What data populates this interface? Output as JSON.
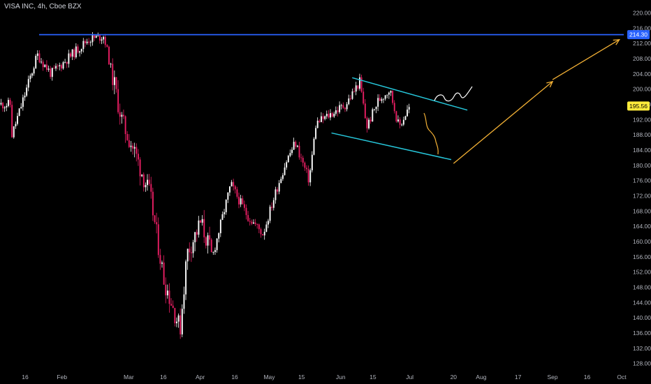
{
  "header": {
    "title": "VISA INC, 4h, Cboe BZX"
  },
  "colors": {
    "background": "#000000",
    "up_candle": "#ffffff",
    "down_candle": "#e91e63",
    "resistance_line": "#2962ff",
    "channel_lines": "#26c6da",
    "projection": "#f2b035",
    "last_price_tag": "#ffeb3b"
  },
  "chart_data": {
    "type": "candlestick",
    "y_axis": {
      "ticks": [
        "220.00",
        "216.00",
        "212.00",
        "208.00",
        "204.00",
        "200.00",
        "196.00",
        "192.00",
        "188.00",
        "184.00",
        "180.00",
        "176.00",
        "172.00",
        "168.00",
        "164.00",
        "160.00",
        "156.00",
        "152.00",
        "148.00",
        "144.00",
        "140.00",
        "136.00",
        "132.00",
        "128.00"
      ],
      "range": [
        126,
        222
      ]
    },
    "x_axis": {
      "ticks": [
        "16",
        "Feb",
        "Mar",
        "16",
        "Apr",
        "16",
        "May",
        "15",
        "Jun",
        "15",
        "Jul",
        "20",
        "Aug",
        "17",
        "Sep",
        "16",
        "Oct"
      ]
    },
    "price_levels": [
      {
        "name": "resistance",
        "value": 214.3,
        "label": "214.30"
      },
      {
        "name": "last_price",
        "value": 195.56,
        "label": "195.56"
      }
    ],
    "price_path_anchors": [
      {
        "date": "Jan 10",
        "price": 188
      },
      {
        "date": "Jan 21",
        "price": 209
      },
      {
        "date": "Jan 27",
        "price": 204
      },
      {
        "date": "Feb 12",
        "price": 213
      },
      {
        "date": "Feb 19",
        "price": 214
      },
      {
        "date": "Feb 21",
        "price": 208
      },
      {
        "date": "Feb 27",
        "price": 191
      },
      {
        "date": "Mar 3",
        "price": 184
      },
      {
        "date": "Mar 10",
        "price": 172
      },
      {
        "date": "Mar 16",
        "price": 150
      },
      {
        "date": "Mar 23",
        "price": 137
      },
      {
        "date": "Mar 26",
        "price": 157
      },
      {
        "date": "Apr 1",
        "price": 165
      },
      {
        "date": "Apr 6",
        "price": 156
      },
      {
        "date": "Apr 14",
        "price": 175
      },
      {
        "date": "Apr 21",
        "price": 167
      },
      {
        "date": "Apr 28",
        "price": 162
      },
      {
        "date": "May 4",
        "price": 174
      },
      {
        "date": "May 8",
        "price": 181
      },
      {
        "date": "May 12",
        "price": 186
      },
      {
        "date": "May 18",
        "price": 176
      },
      {
        "date": "May 21",
        "price": 191
      },
      {
        "date": "Jun 3",
        "price": 196
      },
      {
        "date": "Jun 9",
        "price": 202
      },
      {
        "date": "Jun 12",
        "price": 190
      },
      {
        "date": "Jun 17",
        "price": 197
      },
      {
        "date": "Jun 22",
        "price": 200
      },
      {
        "date": "Jun 26",
        "price": 190
      },
      {
        "date": "Jul 1",
        "price": 196
      }
    ],
    "trendlines": [
      {
        "name": "resistance",
        "from": {
          "date": "Jan 21",
          "price": 214.3
        },
        "to": {
          "date": "Oct 1",
          "price": 214.3
        }
      },
      {
        "name": "channel_upper",
        "from": {
          "date": "Jun 6",
          "price": 203
        },
        "to": {
          "date": "Jul 26",
          "price": 194.5
        }
      },
      {
        "name": "channel_lower",
        "from": {
          "date": "May 28",
          "price": 188.5
        },
        "to": {
          "date": "Jul 19",
          "price": 181.5
        }
      }
    ],
    "projection_arrows": [
      {
        "from": {
          "date": "Jul 20",
          "price": 180.5
        },
        "to": {
          "date": "Sep 1",
          "price": 202
        }
      },
      {
        "from": {
          "date": "Sep 1",
          "price": 202.5
        },
        "to": {
          "date": "Sep 30",
          "price": 213
        }
      }
    ]
  }
}
